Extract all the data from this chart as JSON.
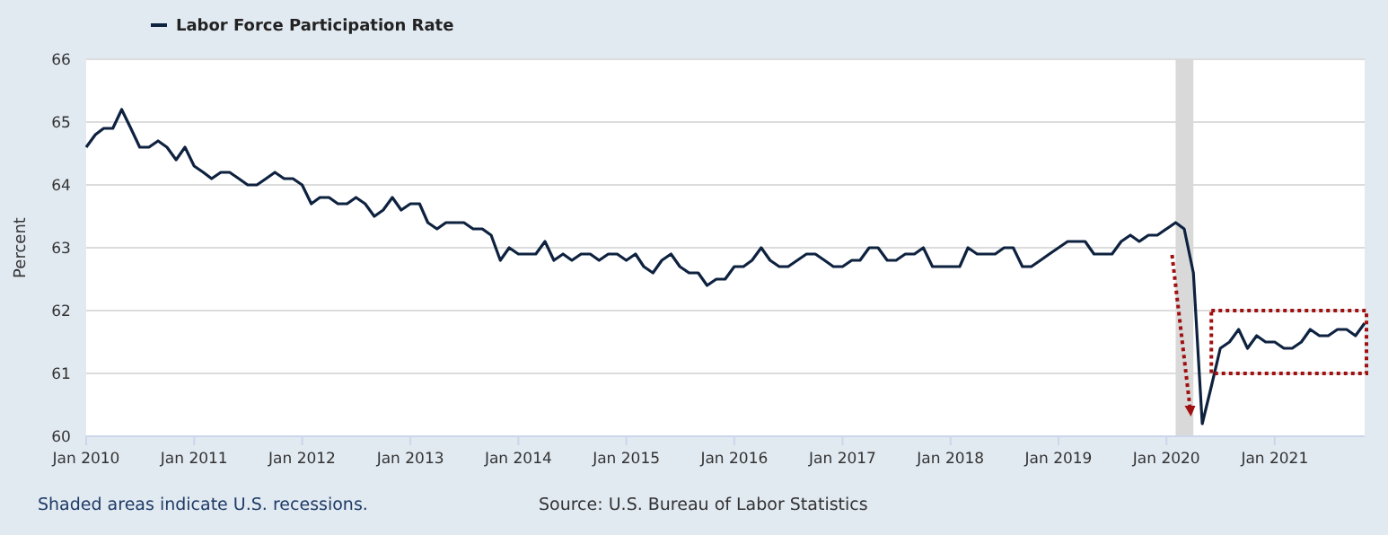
{
  "chart_data": {
    "type": "line",
    "ylabel": "Percent",
    "legend": "top left",
    "grid": "y",
    "marker": "none",
    "line_style": "solid",
    "series": [
      {
        "name": "Labor Force Participation Rate",
        "color": "#0e2240",
        "x": [
          "2010-01",
          "2010-02",
          "2010-03",
          "2010-04",
          "2010-05",
          "2010-06",
          "2010-07",
          "2010-08",
          "2010-09",
          "2010-10",
          "2010-11",
          "2010-12",
          "2011-01",
          "2011-02",
          "2011-03",
          "2011-04",
          "2011-05",
          "2011-06",
          "2011-07",
          "2011-08",
          "2011-09",
          "2011-10",
          "2011-11",
          "2011-12",
          "2012-01",
          "2012-02",
          "2012-03",
          "2012-04",
          "2012-05",
          "2012-06",
          "2012-07",
          "2012-08",
          "2012-09",
          "2012-10",
          "2012-11",
          "2012-12",
          "2013-01",
          "2013-02",
          "2013-03",
          "2013-04",
          "2013-05",
          "2013-06",
          "2013-07",
          "2013-08",
          "2013-09",
          "2013-10",
          "2013-11",
          "2013-12",
          "2014-01",
          "2014-02",
          "2014-03",
          "2014-04",
          "2014-05",
          "2014-06",
          "2014-07",
          "2014-08",
          "2014-09",
          "2014-10",
          "2014-11",
          "2014-12",
          "2015-01",
          "2015-02",
          "2015-03",
          "2015-04",
          "2015-05",
          "2015-06",
          "2015-07",
          "2015-08",
          "2015-09",
          "2015-10",
          "2015-11",
          "2015-12",
          "2016-01",
          "2016-02",
          "2016-03",
          "2016-04",
          "2016-05",
          "2016-06",
          "2016-07",
          "2016-08",
          "2016-09",
          "2016-10",
          "2016-11",
          "2016-12",
          "2017-01",
          "2017-02",
          "2017-03",
          "2017-04",
          "2017-05",
          "2017-06",
          "2017-07",
          "2017-08",
          "2017-09",
          "2017-10",
          "2017-11",
          "2017-12",
          "2018-01",
          "2018-02",
          "2018-03",
          "2018-04",
          "2018-05",
          "2018-06",
          "2018-07",
          "2018-08",
          "2018-09",
          "2018-10",
          "2018-11",
          "2018-12",
          "2019-01",
          "2019-02",
          "2019-03",
          "2019-04",
          "2019-05",
          "2019-06",
          "2019-07",
          "2019-08",
          "2019-09",
          "2019-10",
          "2019-11",
          "2019-12",
          "2020-01",
          "2020-02",
          "2020-03",
          "2020-04",
          "2020-05",
          "2020-06",
          "2020-07",
          "2020-08",
          "2020-09",
          "2020-10",
          "2020-11",
          "2020-12",
          "2021-01",
          "2021-02",
          "2021-03",
          "2021-04",
          "2021-05",
          "2021-06",
          "2021-07",
          "2021-08",
          "2021-09",
          "2021-10",
          "2021-11"
        ],
        "values": [
          64.6,
          64.8,
          64.9,
          64.9,
          65.2,
          64.9,
          64.6,
          64.6,
          64.7,
          64.6,
          64.4,
          64.6,
          64.3,
          64.2,
          64.1,
          64.2,
          64.2,
          64.1,
          64.0,
          64.0,
          64.1,
          64.2,
          64.1,
          64.1,
          64.0,
          63.7,
          63.8,
          63.8,
          63.7,
          63.7,
          63.8,
          63.7,
          63.5,
          63.6,
          63.8,
          63.6,
          63.7,
          63.7,
          63.4,
          63.3,
          63.4,
          63.4,
          63.4,
          63.3,
          63.3,
          63.2,
          62.8,
          63.0,
          62.9,
          62.9,
          62.9,
          63.1,
          62.8,
          62.9,
          62.8,
          62.9,
          62.9,
          62.8,
          62.9,
          62.9,
          62.8,
          62.9,
          62.7,
          62.6,
          62.8,
          62.9,
          62.7,
          62.6,
          62.6,
          62.4,
          62.5,
          62.5,
          62.7,
          62.7,
          62.8,
          63.0,
          62.8,
          62.7,
          62.7,
          62.8,
          62.9,
          62.9,
          62.8,
          62.7,
          62.7,
          62.8,
          62.8,
          63.0,
          63.0,
          62.8,
          62.8,
          62.9,
          62.9,
          63.0,
          62.7,
          62.7,
          62.7,
          62.7,
          63.0,
          62.9,
          62.9,
          62.9,
          63.0,
          63.0,
          62.7,
          62.7,
          62.8,
          62.9,
          63.0,
          63.1,
          63.1,
          63.1,
          62.9,
          62.9,
          62.9,
          63.1,
          63.2,
          63.1,
          63.2,
          63.2,
          63.3,
          63.4,
          63.3,
          62.6,
          60.2,
          60.8,
          61.4,
          61.5,
          61.7,
          61.4,
          61.6,
          61.5,
          61.5,
          61.4,
          61.4,
          61.5,
          61.7,
          61.6,
          61.6,
          61.7,
          61.7,
          61.6,
          61.8
        ]
      }
    ],
    "xlim": [
      "2010-01",
      "2021-11"
    ],
    "xticks": [
      {
        "value": "2010-01",
        "label": "Jan 2010"
      },
      {
        "value": "2011-01",
        "label": "Jan 2011"
      },
      {
        "value": "2012-01",
        "label": "Jan 2012"
      },
      {
        "value": "2013-01",
        "label": "Jan 2013"
      },
      {
        "value": "2014-01",
        "label": "Jan 2014"
      },
      {
        "value": "2015-01",
        "label": "Jan 2015"
      },
      {
        "value": "2016-01",
        "label": "Jan 2016"
      },
      {
        "value": "2017-01",
        "label": "Jan 2017"
      },
      {
        "value": "2018-01",
        "label": "Jan 2018"
      },
      {
        "value": "2019-01",
        "label": "Jan 2019"
      },
      {
        "value": "2020-01",
        "label": "Jan 2020"
      },
      {
        "value": "2021-01",
        "label": "Jan 2021"
      }
    ],
    "ylim": [
      60,
      66
    ],
    "yticks": [
      60,
      61,
      62,
      63,
      64,
      65,
      66
    ],
    "bands": [
      {
        "axis": "x",
        "from": "2020-02",
        "to": "2020-04",
        "color": "#d9d9d9"
      }
    ],
    "annotations": [
      "Shaded areas indicate U.S. recessions.",
      "Source: U.S. Bureau of Labor Statistics"
    ]
  }
}
